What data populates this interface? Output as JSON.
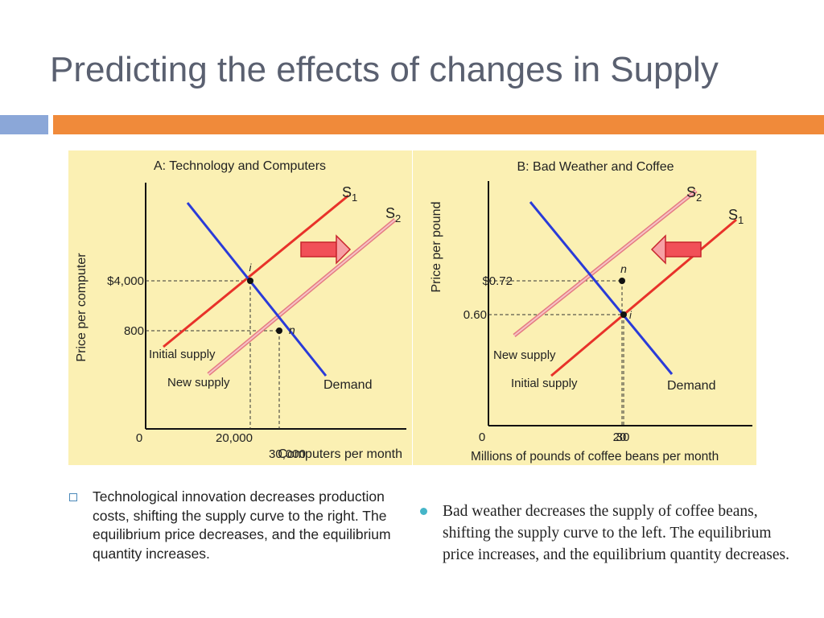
{
  "slide": {
    "title": "Predicting the effects of changes in Supply",
    "colors": {
      "title": "#5a6070",
      "bar_blue": "#8ba7d8",
      "bar_orange": "#f08a3a",
      "panel_bg": "#fbf0b3"
    }
  },
  "bullets": {
    "left": "Technological innovation decreases production costs, shifting the supply curve to the right.  The equilibrium price decreases, and the equilibrium quantity increases.",
    "right": "Bad weather decreases the supply of coffee beans, shifting the supply curve to the left.  The equilibrium price increases, and the equilibrium quantity decreases."
  },
  "chart_data": [
    {
      "type": "line",
      "title": "A: Technology and Computers",
      "xlabel": "Computers per month",
      "ylabel": "Price per computer",
      "origin_label": "0",
      "x_ticks": [
        "20,000",
        "30,000"
      ],
      "y_ticks": [
        "$4,000",
        "800"
      ],
      "series": [
        {
          "name": "S1",
          "color": "#e8322a",
          "label": "Initial supply"
        },
        {
          "name": "S2",
          "color": "#f0a3a7",
          "label": "New supply"
        },
        {
          "name": "Demand",
          "color": "#2a3bd8",
          "label": "Demand"
        }
      ],
      "points": [
        {
          "name": "i",
          "x": "20,000",
          "y": "$4,000"
        },
        {
          "name": "n",
          "x": "30,000",
          "y": "800"
        }
      ],
      "shift": "right"
    },
    {
      "type": "line",
      "title": "B: Bad Weather and Coffee",
      "xlabel": "Millions of pounds of coffee beans per month",
      "ylabel": "Price per pound",
      "origin_label": "0",
      "x_ticks": [
        "20",
        "30"
      ],
      "y_ticks": [
        "$0.72",
        "0.60"
      ],
      "series": [
        {
          "name": "S2",
          "color": "#f0a3a7",
          "label": "New supply"
        },
        {
          "name": "S1",
          "color": "#e8322a",
          "label": "Initial supply"
        },
        {
          "name": "Demand",
          "color": "#2a3bd8",
          "label": "Demand"
        }
      ],
      "points": [
        {
          "name": "n",
          "x": "20",
          "y": "$0.72"
        },
        {
          "name": "i",
          "x": "30",
          "y": "0.60"
        }
      ],
      "shift": "left"
    }
  ]
}
